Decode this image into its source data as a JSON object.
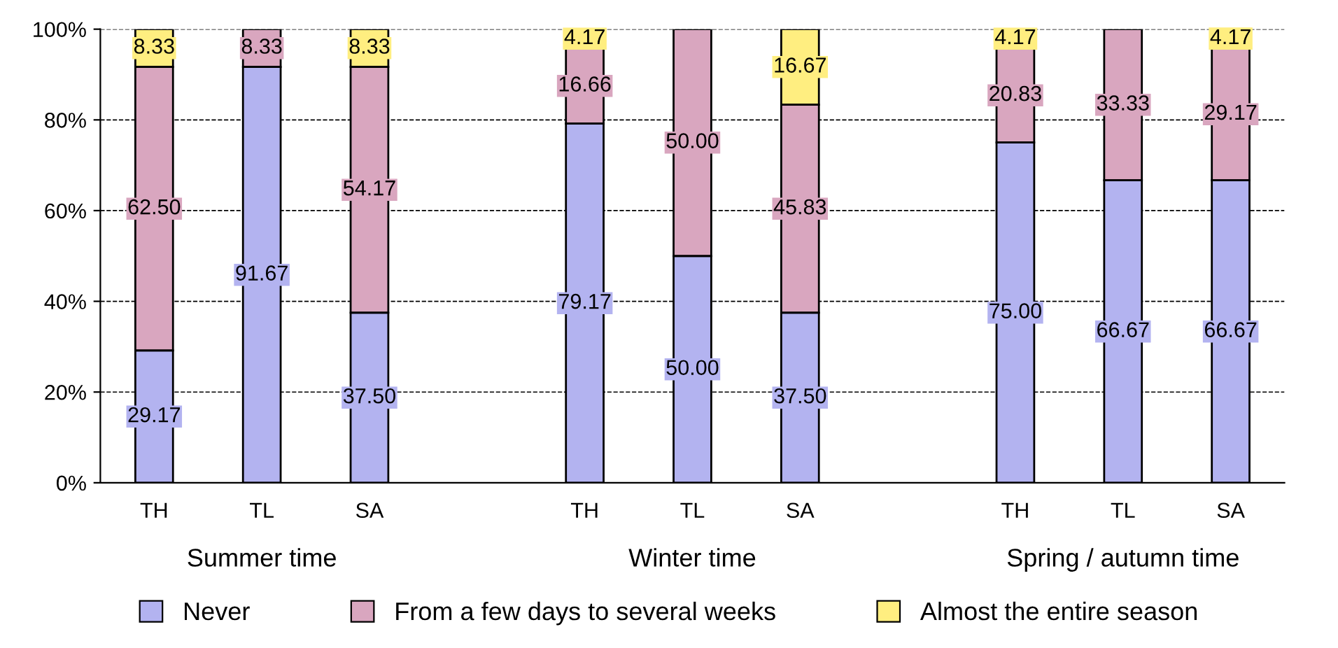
{
  "chart_data": {
    "type": "bar",
    "stacked": true,
    "categories": [
      "TH",
      "TL",
      "SA",
      null,
      "TH",
      "TL",
      "SA",
      null,
      "TH",
      "TL",
      "SA"
    ],
    "series": [
      {
        "name": "Never",
        "color": "#b3b3f0",
        "values": [
          29.17,
          91.67,
          37.5,
          null,
          79.17,
          50.0,
          37.5,
          null,
          75.0,
          66.67,
          66.67
        ],
        "value_labels": [
          "29.17",
          "91.67",
          "37.50",
          null,
          "79.17",
          "50.00",
          "37.50",
          null,
          "75.00",
          "66.67",
          "66.67"
        ]
      },
      {
        "name": "From a few days to several weeks",
        "color": "#d9a6bf",
        "values": [
          62.5,
          8.33,
          54.17,
          null,
          16.66,
          50.0,
          45.83,
          null,
          20.83,
          33.33,
          29.17
        ],
        "value_labels": [
          "62.50",
          "8.33",
          "54.17",
          null,
          "16.66",
          "50.00",
          "45.83",
          null,
          "20.83",
          "33.33",
          "29.17"
        ]
      },
      {
        "name": "Almost the entire season",
        "color": "#ffee80",
        "values": [
          8.33,
          null,
          8.33,
          null,
          4.17,
          null,
          16.67,
          null,
          4.17,
          null,
          4.17
        ],
        "value_labels": [
          "8.33",
          null,
          "8.33",
          null,
          "4.17",
          null,
          "16.67",
          null,
          "4.17",
          null,
          "4.17"
        ]
      }
    ],
    "ylim": [
      0,
      100
    ],
    "yticks": [
      {
        "value": 0,
        "label": "0%"
      },
      {
        "value": 20,
        "label": "20%"
      },
      {
        "value": 40,
        "label": "40%"
      },
      {
        "value": 60,
        "label": "60%"
      },
      {
        "value": 80,
        "label": "80%"
      },
      {
        "value": 100,
        "label": "100%"
      }
    ],
    "grid": "y",
    "line_style": "dashed",
    "legend": "bottom",
    "annotations": [
      "Summer time",
      "Winter time",
      "Spring / autumn time"
    ]
  }
}
